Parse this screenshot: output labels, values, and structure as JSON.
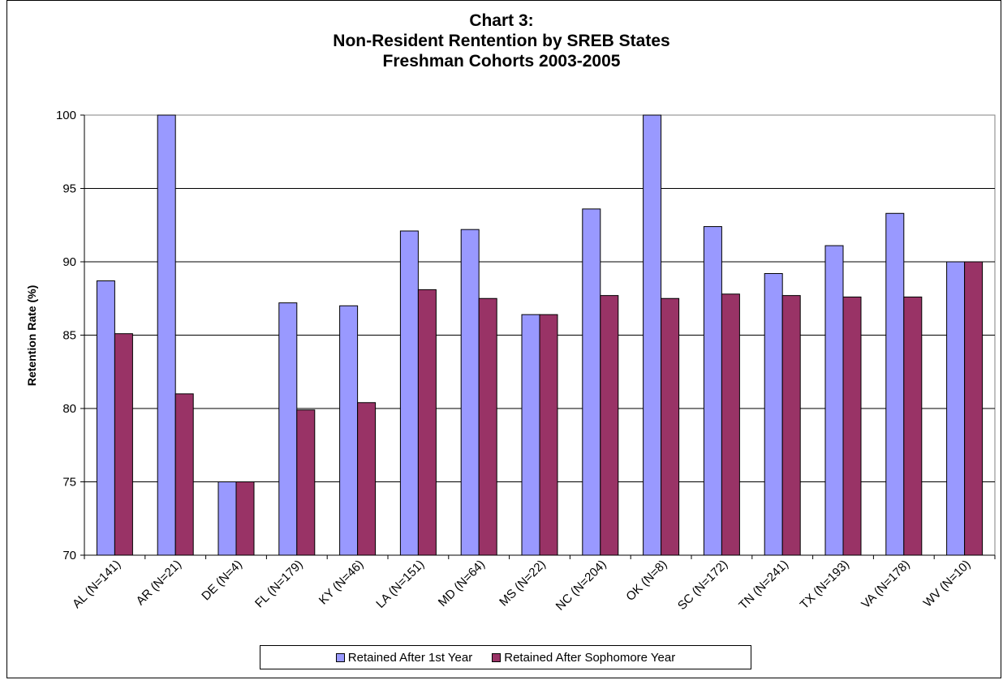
{
  "chart_data": {
    "type": "bar",
    "title": [
      "Chart 3:",
      "Non-Resident Rentention by SREB States",
      "Freshman Cohorts 2003-2005"
    ],
    "xlabel": "",
    "ylabel": "Retention Rate (%)",
    "ylim": [
      70,
      100
    ],
    "yticks": [
      "70",
      "75",
      "80",
      "85",
      "90",
      "95",
      "100"
    ],
    "grid": true,
    "legend_position": "bottom",
    "categories": [
      "AL (N=141)",
      "AR (N=21)",
      "DE (N=4)",
      "FL (N=179)",
      "KY (N=46)",
      "LA (N=151)",
      "MD (N=64)",
      "MS (N=22)",
      "NC (N=204)",
      "OK (N=8)",
      "SC (N=172)",
      "TN (N=241)",
      "TX (N=193)",
      "VA (N=178)",
      "WV (N=10)"
    ],
    "series": [
      {
        "name": "Retained After 1st Year",
        "color": "#9999ff",
        "values": [
          88.7,
          100,
          75.0,
          87.2,
          87.0,
          92.1,
          92.2,
          86.4,
          93.6,
          100,
          92.4,
          89.2,
          91.1,
          93.3,
          90.0
        ]
      },
      {
        "name": "Retained After Sophomore Year",
        "color": "#993366",
        "values": [
          85.1,
          81.0,
          75.0,
          79.9,
          80.4,
          88.1,
          87.5,
          86.4,
          87.7,
          87.5,
          87.8,
          87.7,
          87.6,
          87.6,
          90.0
        ]
      }
    ]
  }
}
